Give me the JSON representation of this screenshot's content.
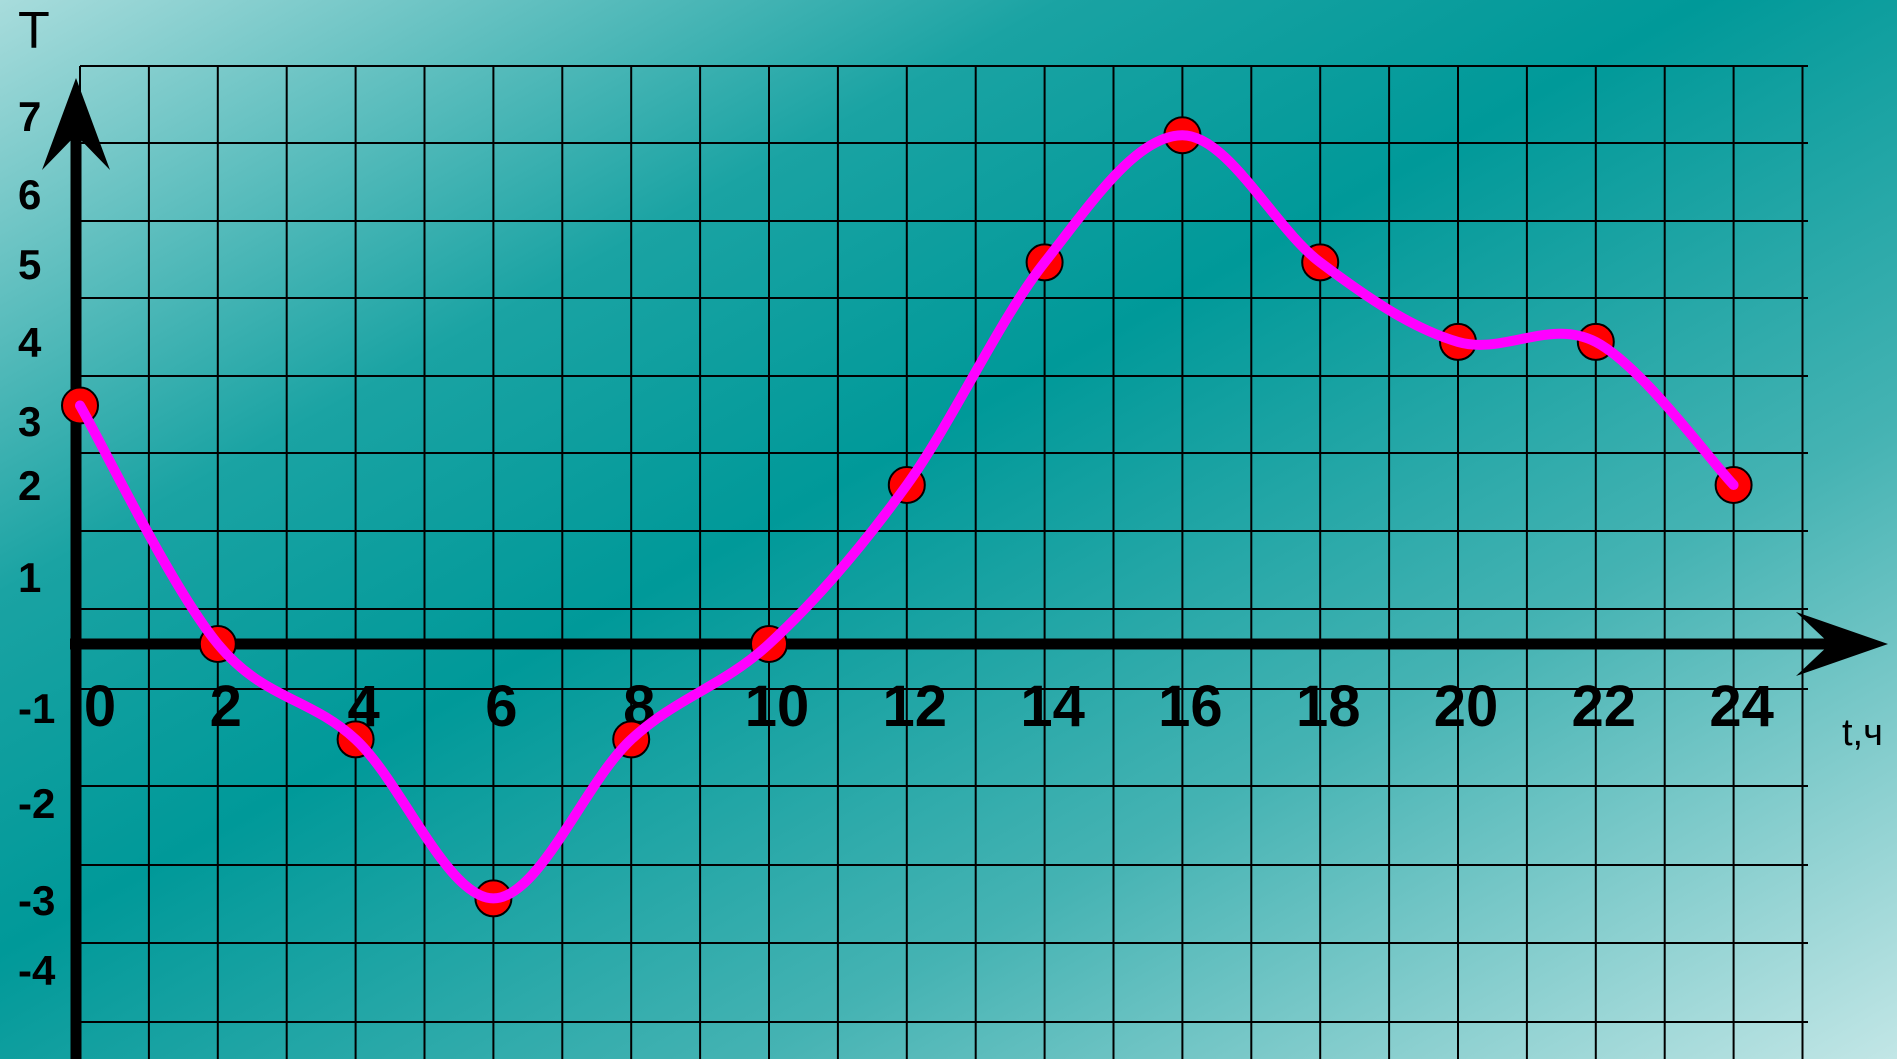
{
  "chart_data": {
    "type": "line",
    "ylabel": "T",
    "xlabel": "t,ч",
    "x_ticks": [
      "0",
      "2",
      "4",
      "6",
      "8",
      "10",
      "12",
      "14",
      "16",
      "18",
      "20",
      "22",
      "24"
    ],
    "y_ticks": [
      "7",
      "6",
      "5",
      "4",
      "3",
      "2",
      "1",
      "-1",
      "-2",
      "-3",
      "-4"
    ],
    "x": [
      0,
      2,
      4,
      6,
      8,
      10,
      12,
      14,
      16,
      18,
      20,
      22,
      24
    ],
    "y": [
      3,
      0,
      -1.2,
      -3.2,
      -1.2,
      0,
      2,
      4.8,
      6.4,
      4.8,
      3.8,
      3.8,
      2
    ],
    "xlim": [
      0,
      24
    ],
    "ylim": [
      -4,
      7
    ],
    "grid": true,
    "colors": {
      "line": "#ff00ff",
      "marker": "#ff0000",
      "axis": "#000000",
      "grid": "#000000",
      "background_light": "#a8dcdc",
      "background_dark": "#009999"
    }
  }
}
